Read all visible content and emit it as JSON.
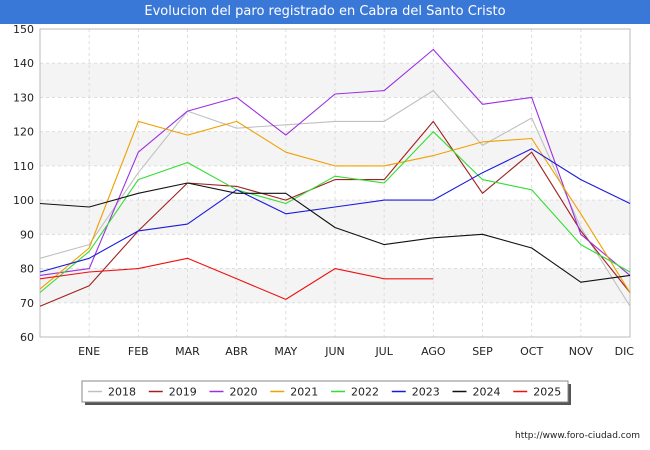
{
  "chart_data": {
    "type": "line",
    "title": "Evolucion del paro registrado en Cabra del Santo Cristo",
    "x_categories": [
      "",
      "ENE",
      "FEB",
      "MAR",
      "ABR",
      "MAY",
      "JUN",
      "JUL",
      "AGO",
      "SEP",
      "OCT",
      "NOV",
      "DIC"
    ],
    "ylim": [
      60,
      150
    ],
    "yticks": [
      60,
      70,
      80,
      90,
      100,
      110,
      120,
      130,
      140,
      150
    ],
    "grid": true,
    "legend_position": "bottom",
    "series": [
      {
        "name": "2018",
        "color": "#c0c0c0",
        "values": [
          83,
          87,
          108,
          126,
          121,
          122,
          123,
          123,
          132,
          116,
          124,
          92,
          69
        ]
      },
      {
        "name": "2019",
        "color": "#a02020",
        "values": [
          69,
          75,
          91,
          105,
          104,
          100,
          106,
          106,
          123,
          102,
          114,
          91,
          73
        ]
      },
      {
        "name": "2020",
        "color": "#9b30e0",
        "values": [
          78,
          80,
          114,
          126,
          130,
          119,
          131,
          132,
          144,
          128,
          130,
          90,
          78
        ]
      },
      {
        "name": "2021",
        "color": "#f0a000",
        "values": [
          74,
          86,
          123,
          119,
          123,
          114,
          110,
          110,
          113,
          117,
          118,
          96,
          73
        ]
      },
      {
        "name": "2022",
        "color": "#33dd33",
        "values": [
          73,
          85,
          106,
          111,
          103,
          99,
          107,
          105,
          120,
          106,
          103,
          87,
          79
        ]
      },
      {
        "name": "2023",
        "color": "#1a1add",
        "values": [
          79,
          83,
          91,
          93,
          103,
          96,
          98,
          100,
          100,
          108,
          115,
          106,
          99
        ]
      },
      {
        "name": "2024",
        "color": "#111111",
        "values": [
          99,
          98,
          102,
          105,
          102,
          102,
          92,
          87,
          89,
          90,
          86,
          76,
          78
        ]
      },
      {
        "name": "2025",
        "color": "#ee1111",
        "values": [
          77,
          79,
          80,
          83,
          77,
          71,
          80,
          77,
          77,
          null,
          null,
          null,
          null
        ]
      }
    ]
  },
  "footer": {
    "url": "http://www.foro-ciudad.com"
  }
}
